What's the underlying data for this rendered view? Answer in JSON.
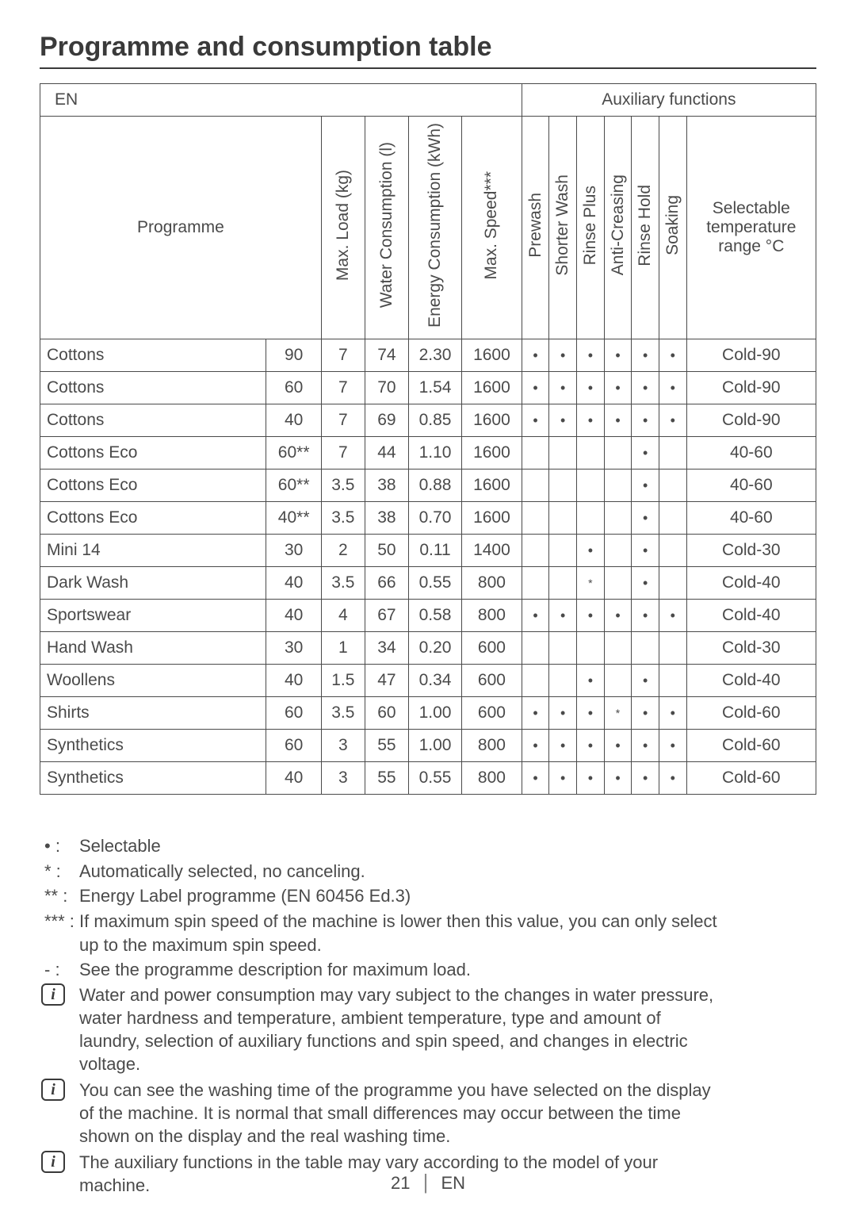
{
  "title": "Programme and consumption table",
  "table": {
    "en_label": "EN",
    "aux_label": "Auxiliary functions",
    "headers": {
      "programme": "Programme",
      "max_load": "Max. Load (kg)",
      "water": "Water Consumption (l)",
      "energy": "Energy Consumption (kWh)",
      "speed": "Max. Speed***",
      "prewash": "Prewash",
      "shorter": "Shorter Wash",
      "rinseplus": "Rinse Plus",
      "anticrease": "Anti-Creasing",
      "rinsehold": "Rinse Hold",
      "soaking": "Soaking",
      "temprange": "Selectable temperature range °C"
    },
    "col_widths": {
      "programme": 280,
      "temp": 68,
      "max_load": 54,
      "water": 54,
      "energy": 66,
      "speed": 74,
      "aux": 34,
      "range": 160
    },
    "rows": [
      {
        "prog": "Cottons",
        "t": "90",
        "load": "7",
        "water": "74",
        "energy": "2.30",
        "speed": "1600",
        "pw": "•",
        "sw": "•",
        "rp": "•",
        "ac": "•",
        "rh": "•",
        "sk": "•",
        "range": "Cold-90"
      },
      {
        "prog": "Cottons",
        "t": "60",
        "load": "7",
        "water": "70",
        "energy": "1.54",
        "speed": "1600",
        "pw": "•",
        "sw": "•",
        "rp": "•",
        "ac": "•",
        "rh": "•",
        "sk": "•",
        "range": "Cold-90"
      },
      {
        "prog": "Cottons",
        "t": "40",
        "load": "7",
        "water": "69",
        "energy": "0.85",
        "speed": "1600",
        "pw": "•",
        "sw": "•",
        "rp": "•",
        "ac": "•",
        "rh": "•",
        "sk": "•",
        "range": "Cold-90"
      },
      {
        "prog": "Cottons Eco",
        "t": "60**",
        "load": "7",
        "water": "44",
        "energy": "1.10",
        "speed": "1600",
        "pw": "",
        "sw": "",
        "rp": "",
        "ac": "",
        "rh": "•",
        "sk": "",
        "range": "40-60"
      },
      {
        "prog": "Cottons Eco",
        "t": "60**",
        "load": "3.5",
        "water": "38",
        "energy": "0.88",
        "speed": "1600",
        "pw": "",
        "sw": "",
        "rp": "",
        "ac": "",
        "rh": "•",
        "sk": "",
        "range": "40-60"
      },
      {
        "prog": "Cottons Eco",
        "t": "40**",
        "load": "3.5",
        "water": "38",
        "energy": "0.70",
        "speed": "1600",
        "pw": "",
        "sw": "",
        "rp": "",
        "ac": "",
        "rh": "•",
        "sk": "",
        "range": "40-60"
      },
      {
        "prog": "Mini 14",
        "t": "30",
        "load": "2",
        "water": "50",
        "energy": "0.11",
        "speed": "1400",
        "pw": "",
        "sw": "",
        "rp": "•",
        "ac": "",
        "rh": "•",
        "sk": "",
        "range": "Cold-30"
      },
      {
        "prog": "Dark Wash",
        "t": "40",
        "load": "3.5",
        "water": "66",
        "energy": "0.55",
        "speed": "800",
        "pw": "",
        "sw": "",
        "rp": "*",
        "ac": "",
        "rh": "•",
        "sk": "",
        "range": "Cold-40"
      },
      {
        "prog": "Sportswear",
        "t": "40",
        "load": "4",
        "water": "67",
        "energy": "0.58",
        "speed": "800",
        "pw": "•",
        "sw": "•",
        "rp": "•",
        "ac": "•",
        "rh": "•",
        "sk": "•",
        "range": "Cold-40"
      },
      {
        "prog": "Hand Wash",
        "t": "30",
        "load": "1",
        "water": "34",
        "energy": "0.20",
        "speed": "600",
        "pw": "",
        "sw": "",
        "rp": "",
        "ac": "",
        "rh": "",
        "sk": "",
        "range": "Cold-30"
      },
      {
        "prog": "Woollens",
        "t": "40",
        "load": "1.5",
        "water": "47",
        "energy": "0.34",
        "speed": "600",
        "pw": "",
        "sw": "",
        "rp": "•",
        "ac": "",
        "rh": "•",
        "sk": "",
        "range": "Cold-40"
      },
      {
        "prog": "Shirts",
        "t": "60",
        "load": "3.5",
        "water": "60",
        "energy": "1.00",
        "speed": "600",
        "pw": "•",
        "sw": "•",
        "rp": "•",
        "ac": "*",
        "rh": "•",
        "sk": "•",
        "range": "Cold-60"
      },
      {
        "prog": "Synthetics",
        "t": "60",
        "load": "3",
        "water": "55",
        "energy": "1.00",
        "speed": "800",
        "pw": "•",
        "sw": "•",
        "rp": "•",
        "ac": "•",
        "rh": "•",
        "sk": "•",
        "range": "Cold-60"
      },
      {
        "prog": "Synthetics",
        "t": "40",
        "load": "3",
        "water": "55",
        "energy": "0.55",
        "speed": "800",
        "pw": "•",
        "sw": "•",
        "rp": "•",
        "ac": "•",
        "rh": "•",
        "sk": "•",
        "range": "Cold-60"
      }
    ]
  },
  "legend": [
    {
      "sym": "• :",
      "txt": "Selectable"
    },
    {
      "sym": "* :",
      "txt": "Automatically selected, no canceling."
    },
    {
      "sym": "** :",
      "txt": "Energy Label programme (EN 60456 Ed.3)"
    },
    {
      "sym": "*** :",
      "txt": "If maximum spin speed of the machine is lower then this value, you can only select\nup to the maximum spin speed."
    },
    {
      "sym": "- :",
      "txt": "See the programme description for maximum load."
    }
  ],
  "info_notes": [
    "Water and power consumption may vary subject to the changes in water pressure,\nwater hardness and temperature, ambient temperature, type and amount of\nlaundry, selection of auxiliary functions and spin speed, and changes in electric\nvoltage.",
    "You can see the washing time of the programme you have selected on the display\nof the machine. It is normal that small differences may occur between the time\nshown on the display and the real washing time.",
    "The auxiliary functions in the table may vary according to the model of your\nmachine."
  ],
  "footer": {
    "page": "21",
    "lang": "EN"
  }
}
